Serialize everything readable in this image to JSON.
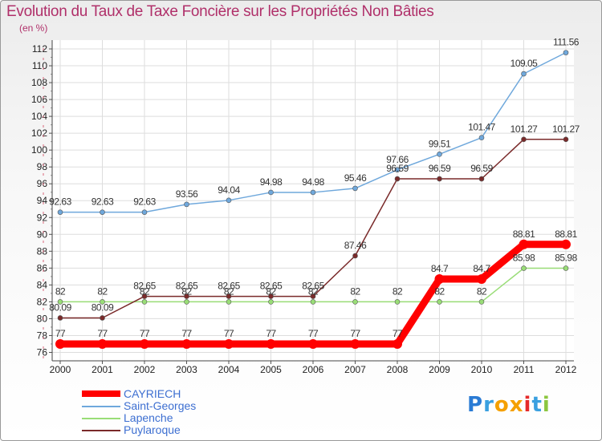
{
  "title": "Evolution du Taux de Taxe Foncière sur les Propriétés Non Bâties",
  "unit_label": "(en %)",
  "logo": {
    "text": "Proxiti",
    "letters": [
      "P",
      "r",
      "o",
      "x",
      "i",
      "t",
      "i"
    ],
    "colors": [
      "#2a7bd4",
      "#3aa0e0",
      "#f5a000",
      "#f5a000",
      "#e52a2a",
      "#3aa0e0",
      "#8cc63f"
    ]
  },
  "chart_data": {
    "type": "line",
    "title": "Evolution du Taux de Taxe Foncière sur les Propriétés Non Bâties",
    "ylabel": "(en %)",
    "xlabel": "",
    "x": [
      "2000",
      "2001",
      "2002",
      "2003",
      "2004",
      "2005",
      "2006",
      "2007",
      "2008",
      "2009",
      "2010",
      "2011",
      "2012"
    ],
    "ylim": [
      76,
      112
    ],
    "yticks": [
      76,
      78,
      80,
      82,
      84,
      86,
      88,
      90,
      92,
      94,
      96,
      98,
      100,
      102,
      104,
      106,
      108,
      110,
      112
    ],
    "grid": true,
    "series": [
      {
        "name": "CAYRIECH",
        "color": "#ff0000",
        "values": [
          77,
          77,
          77,
          77,
          77,
          77,
          77,
          77,
          77,
          84.7,
          84.7,
          88.81,
          88.81
        ],
        "labels": [
          "77",
          "77",
          "77",
          "77",
          "77",
          "77",
          "77",
          "77",
          "77",
          "84.7",
          "84.7",
          "88.81",
          "88.81"
        ]
      },
      {
        "name": "Saint-Georges",
        "color": "#6fa8dc",
        "values": [
          92.63,
          92.63,
          92.63,
          93.56,
          94.04,
          94.98,
          94.98,
          95.46,
          97.66,
          99.51,
          101.47,
          109.05,
          111.56
        ],
        "labels": [
          "92.63",
          "92.63",
          "92.63",
          "93.56",
          "94.04",
          "94.98",
          "94.98",
          "95.46",
          "97.66",
          "99.51",
          "101.47",
          "109.05",
          "111.56"
        ]
      },
      {
        "name": "Lapenche",
        "color": "#99dd77",
        "values": [
          82,
          82,
          82,
          82,
          82,
          82,
          82,
          82,
          82,
          82,
          82,
          85.98,
          85.98
        ],
        "labels": [
          "82",
          "82",
          "82",
          "82",
          "82",
          "82",
          "82",
          "82",
          "82",
          "82",
          "82",
          "85.98",
          "85.98"
        ]
      },
      {
        "name": "Puylaroque",
        "color": "#7a2a2a",
        "values": [
          80.09,
          80.09,
          82.65,
          82.65,
          82.65,
          82.65,
          82.65,
          87.46,
          96.59,
          96.59,
          96.59,
          101.27,
          101.27
        ],
        "labels": [
          "80.09",
          "80.09",
          "82.65",
          "82.65",
          "82.65",
          "82.65",
          "82.65",
          "87.46",
          "96.59",
          "96.59",
          "96.59",
          "101.27",
          "101.27"
        ]
      }
    ]
  }
}
